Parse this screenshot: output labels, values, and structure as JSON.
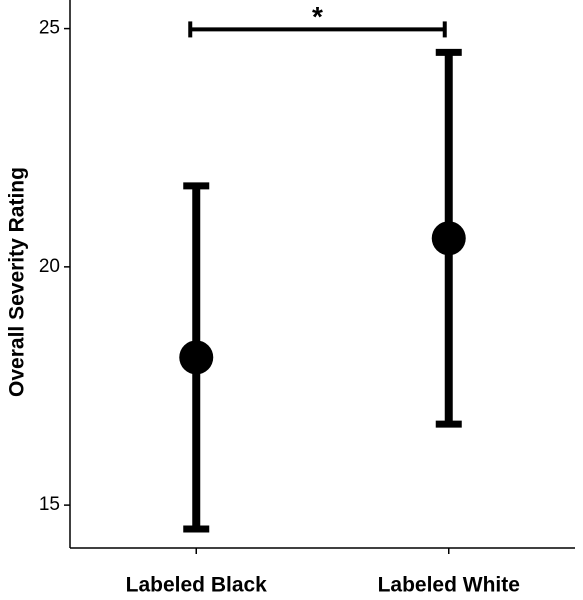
{
  "chart_data": {
    "type": "errorbar",
    "y_label": "Overall Severity Rating",
    "categories": [
      "Labeled Black",
      "Labeled White"
    ],
    "values": [
      18.1,
      20.6
    ],
    "errors": [
      3.6,
      3.9
    ],
    "color": "#000000",
    "annotation": "*",
    "ylim": [
      14.1,
      25.6
    ],
    "yticks": [
      15,
      20,
      25
    ]
  }
}
